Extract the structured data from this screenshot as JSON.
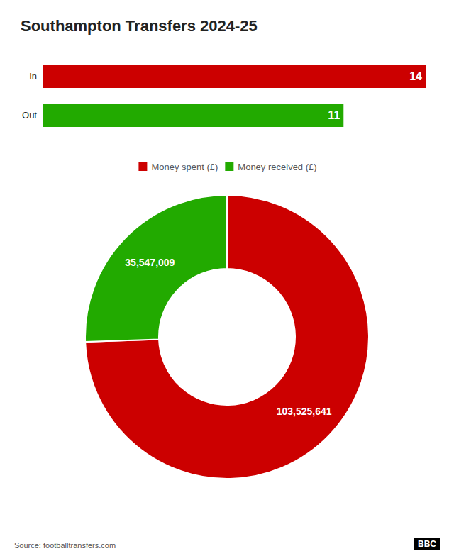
{
  "chart_data": [
    {
      "type": "bar",
      "title": "Southampton Transfers 2024-25",
      "orientation": "horizontal",
      "categories": [
        "In",
        "Out"
      ],
      "values": [
        14,
        11
      ],
      "colors": [
        "#cc0000",
        "#22aa00"
      ],
      "xlim": [
        0,
        14
      ],
      "data_labels": true,
      "tick_labels": "y",
      "grid": false
    },
    {
      "type": "pie",
      "categories": [
        "Money spent (£)",
        "Money received (£)"
      ],
      "values": [
        103525641,
        35547009
      ],
      "value_labels": [
        "103,525,641",
        "35,547,009"
      ],
      "colors": [
        "#cc0000",
        "#22aa00"
      ],
      "data_labels": true,
      "legend": "top",
      "annotations": [
        "Source: footballtransfers.com",
        "BBC"
      ]
    }
  ]
}
